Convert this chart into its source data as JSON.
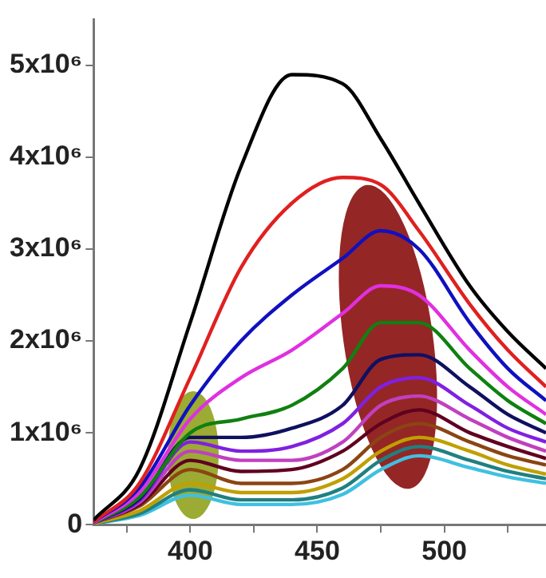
{
  "chart_data": {
    "type": "line",
    "x": [
      362,
      380,
      400,
      420,
      440,
      460,
      475,
      490,
      510,
      525,
      540
    ],
    "xlim": [
      362,
      540
    ],
    "xticks": [
      {
        "value": 375,
        "label": null
      },
      400,
      {
        "value": 425,
        "label": null
      },
      450,
      {
        "value": 475,
        "label": null
      },
      500,
      {
        "value": 525,
        "label": null
      }
    ],
    "ylim": [
      0,
      5500000
    ],
    "yticks": [
      0,
      {
        "value": 1000000,
        "label": "1x10⁶"
      },
      {
        "value": 2000000,
        "label": "2x10⁶"
      },
      {
        "value": 3000000,
        "label": "3x10⁶"
      },
      {
        "value": 4000000,
        "label": "4x10⁶"
      },
      {
        "value": 5000000,
        "label": "5x10⁶"
      }
    ],
    "grid": false,
    "legend": false,
    "marker": "none",
    "line_style": "solid",
    "series": [
      {
        "color": "#000000",
        "values": [
          50000,
          600000,
          2200000,
          3900000,
          4900000,
          4800000,
          4200000,
          3500000,
          2600000,
          2100000,
          1700000
        ]
      },
      {
        "color": "#e02020",
        "values": [
          30000,
          450000,
          1600000,
          2800000,
          3500000,
          3780000,
          3700000,
          3200000,
          2400000,
          1900000,
          1500000
        ]
      },
      {
        "color": "#1010c0",
        "values": [
          30000,
          400000,
          1300000,
          2000000,
          2500000,
          2900000,
          3200000,
          3000000,
          2200000,
          1700000,
          1350000
        ]
      },
      {
        "color": "#e030e0",
        "values": [
          20000,
          350000,
          1150000,
          1600000,
          1900000,
          2300000,
          2600000,
          2500000,
          1900000,
          1500000,
          1200000
        ]
      },
      {
        "color": "#108010",
        "values": [
          20000,
          300000,
          1000000,
          1150000,
          1300000,
          1700000,
          2200000,
          2200000,
          1700000,
          1350000,
          1100000
        ]
      },
      {
        "color": "#101060",
        "values": [
          20000,
          280000,
          950000,
          950000,
          1050000,
          1300000,
          1800000,
          1850000,
          1500000,
          1200000,
          1000000
        ]
      },
      {
        "color": "#8020e0",
        "values": [
          20000,
          260000,
          900000,
          800000,
          850000,
          1100000,
          1500000,
          1600000,
          1300000,
          1050000,
          900000
        ]
      },
      {
        "color": "#c040c0",
        "values": [
          20000,
          240000,
          800000,
          700000,
          700000,
          900000,
          1300000,
          1400000,
          1150000,
          950000,
          800000
        ]
      },
      {
        "color": "#600020",
        "values": [
          20000,
          220000,
          700000,
          580000,
          600000,
          800000,
          1100000,
          1250000,
          1000000,
          850000,
          720000
        ]
      },
      {
        "color": "#8b4513",
        "values": [
          20000,
          200000,
          600000,
          450000,
          450000,
          600000,
          950000,
          1100000,
          900000,
          750000,
          650000
        ]
      },
      {
        "color": "#c0a000",
        "values": [
          10000,
          150000,
          450000,
          350000,
          350000,
          500000,
          800000,
          950000,
          800000,
          650000,
          550000
        ]
      },
      {
        "color": "#208080",
        "values": [
          10000,
          120000,
          380000,
          270000,
          270000,
          400000,
          700000,
          850000,
          700000,
          580000,
          500000
        ]
      },
      {
        "color": "#40c0e0",
        "values": [
          10000,
          100000,
          320000,
          220000,
          220000,
          330000,
          600000,
          750000,
          620000,
          520000,
          450000
        ]
      }
    ]
  }
}
